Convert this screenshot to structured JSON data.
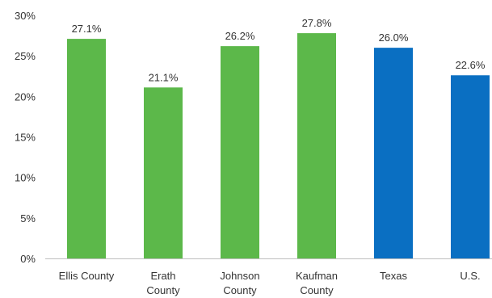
{
  "chart_data": {
    "type": "bar",
    "categories": [
      [
        "Ellis County"
      ],
      [
        "Erath",
        "County"
      ],
      [
        "Johnson",
        "County"
      ],
      [
        "Kaufman",
        "County"
      ],
      [
        "Texas"
      ],
      [
        "U.S."
      ]
    ],
    "values": [
      27.1,
      21.1,
      26.2,
      27.8,
      26.0,
      22.6
    ],
    "data_labels": [
      "27.1%",
      "21.1%",
      "26.2%",
      "27.8%",
      "26.0%",
      "22.6%"
    ],
    "bar_colors": [
      "#5cb84a",
      "#5cb84a",
      "#5cb84a",
      "#5cb84a",
      "#0a6fc2",
      "#0a6fc2"
    ],
    "ylim": [
      0,
      30
    ],
    "yticks": [
      0,
      5,
      10,
      15,
      20,
      25,
      30
    ],
    "ytick_labels": [
      "0%",
      "5%",
      "10%",
      "15%",
      "20%",
      "25%",
      "30%"
    ],
    "grid": false,
    "title": "",
    "xlabel": "",
    "ylabel": ""
  }
}
